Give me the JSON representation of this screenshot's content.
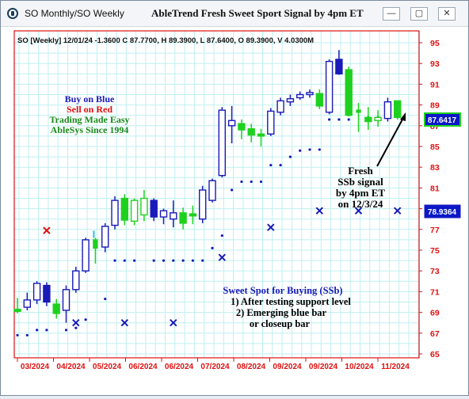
{
  "window": {
    "title": "SO Monthly/SO Weekly",
    "chart_title": "AbleTrend Fresh Sweet Sport Signal by 4pm ET",
    "minimize_glyph": "—",
    "maximize_glyph": "▢",
    "close_glyph": "✕"
  },
  "chart": {
    "info_line": "SO [Weekly] 12/01/24  -1.3600 C 87.7700, H 89.3900, L 87.6400, O 89.3900, V 4.0300M",
    "legend_lines": [
      {
        "text": "Buy on Blue",
        "color": "#1a1ab8"
      },
      {
        "text": "Sell on Red",
        "color": "#e01010"
      },
      {
        "text": "Trading Made Easy",
        "color": "#1a8a1a"
      },
      {
        "text": "AbleSys Since 1994",
        "color": "#1a8a1a"
      }
    ],
    "signal_note": [
      "Fresh",
      "SSb signal",
      "by 4pm ET",
      "on 12/3/24"
    ],
    "ssb_title": "Sweet Spot for Buying (SSb)",
    "ssb_lines": [
      "1) After testing support level",
      "2) Emerging blue bar",
      "or closeup bar"
    ],
    "price_badges": [
      {
        "value": "87.6417",
        "bg": "#0a18c8",
        "border": "#1fd11f"
      },
      {
        "value": "78.9364",
        "bg": "#0a18c8",
        "border": "#1a1ab8"
      }
    ],
    "colors": {
      "blue": "#1a1ab8",
      "green": "#1fd11f",
      "red": "#e01010",
      "grid": "#bfeff0",
      "axis": "#e01010"
    }
  },
  "chart_data": {
    "type": "candlestick",
    "y_axis": {
      "min": 65,
      "max": 95,
      "ticks": [
        65,
        67,
        69,
        71,
        73,
        75,
        77,
        79,
        81,
        83,
        85,
        87,
        89,
        91,
        93,
        95
      ]
    },
    "x_tick_labels": [
      "03/2024",
      "04/2024",
      "05/2024",
      "06/2024",
      "06/2024",
      "07/2024",
      "08/2024",
      "09/2024",
      "09/2024",
      "10/2024",
      "11/2024"
    ],
    "candles": [
      {
        "o": 69.3,
        "h": 70.4,
        "l": 68.9,
        "c": 69.1,
        "color": "green"
      },
      {
        "o": 69.5,
        "h": 70.9,
        "l": 69.2,
        "c": 70.2,
        "color": "blue"
      },
      {
        "o": 70.2,
        "h": 72.0,
        "l": 69.8,
        "c": 71.8,
        "color": "blue"
      },
      {
        "o": 70.0,
        "h": 71.9,
        "l": 69.6,
        "c": 71.6,
        "color": "blue_fill"
      },
      {
        "o": 69.8,
        "h": 70.3,
        "l": 68.4,
        "c": 68.9,
        "color": "green"
      },
      {
        "o": 69.2,
        "h": 71.6,
        "l": 68.0,
        "c": 71.2,
        "color": "blue"
      },
      {
        "o": 71.2,
        "h": 73.4,
        "l": 70.9,
        "c": 73.0,
        "color": "blue"
      },
      {
        "o": 73.0,
        "h": 76.2,
        "l": 72.8,
        "c": 76.0,
        "color": "blue"
      },
      {
        "o": 75.2,
        "h": 76.2,
        "l": 73.7,
        "c": 76.0,
        "color": "green_mini"
      },
      {
        "o": 75.3,
        "h": 77.6,
        "l": 74.8,
        "c": 77.3,
        "color": "blue"
      },
      {
        "o": 77.4,
        "h": 80.2,
        "l": 77.0,
        "c": 79.8,
        "color": "blue"
      },
      {
        "o": 80.0,
        "h": 80.4,
        "l": 77.4,
        "c": 77.9,
        "color": "green"
      },
      {
        "o": 79.8,
        "h": 80.0,
        "l": 77.4,
        "c": 77.8,
        "color": "green_open"
      },
      {
        "o": 78.4,
        "h": 80.8,
        "l": 77.8,
        "c": 80.0,
        "color": "green_open"
      },
      {
        "o": 79.8,
        "h": 80.0,
        "l": 77.8,
        "c": 78.2,
        "color": "blue_fill"
      },
      {
        "o": 78.2,
        "h": 79.0,
        "l": 77.5,
        "c": 78.8,
        "color": "blue"
      },
      {
        "o": 78.0,
        "h": 79.8,
        "l": 77.2,
        "c": 78.6,
        "color": "blue"
      },
      {
        "o": 78.6,
        "h": 79.1,
        "l": 77.0,
        "c": 77.6,
        "color": "green"
      },
      {
        "o": 78.5,
        "h": 79.3,
        "l": 77.5,
        "c": 78.3,
        "color": "green"
      },
      {
        "o": 78.0,
        "h": 81.2,
        "l": 77.6,
        "c": 80.8,
        "color": "blue"
      },
      {
        "o": 79.8,
        "h": 81.9,
        "l": 79.6,
        "c": 81.7,
        "color": "blue"
      },
      {
        "o": 82.2,
        "h": 88.8,
        "l": 82.0,
        "c": 88.5,
        "color": "blue"
      },
      {
        "o": 87.0,
        "h": 88.9,
        "l": 85.3,
        "c": 87.5,
        "color": "blue"
      },
      {
        "o": 86.6,
        "h": 87.6,
        "l": 85.7,
        "c": 87.2,
        "color": "green"
      },
      {
        "o": 86.7,
        "h": 87.2,
        "l": 85.4,
        "c": 86.1,
        "color": "green"
      },
      {
        "o": 86.2,
        "h": 86.7,
        "l": 85.0,
        "c": 86.0,
        "color": "green"
      },
      {
        "o": 86.2,
        "h": 88.7,
        "l": 86.0,
        "c": 88.4,
        "color": "blue"
      },
      {
        "o": 88.3,
        "h": 89.7,
        "l": 88.0,
        "c": 89.4,
        "color": "blue"
      },
      {
        "o": 89.3,
        "h": 90.0,
        "l": 88.9,
        "c": 89.6,
        "color": "blue"
      },
      {
        "o": 89.7,
        "h": 90.3,
        "l": 89.5,
        "c": 90.0,
        "color": "blue"
      },
      {
        "o": 90.0,
        "h": 90.5,
        "l": 89.7,
        "c": 90.2,
        "color": "blue"
      },
      {
        "o": 90.1,
        "h": 90.5,
        "l": 88.6,
        "c": 88.9,
        "color": "green"
      },
      {
        "o": 88.3,
        "h": 93.4,
        "l": 88.1,
        "c": 93.2,
        "color": "blue"
      },
      {
        "o": 93.4,
        "h": 94.3,
        "l": 91.9,
        "c": 92.0,
        "color": "blue_fill"
      },
      {
        "o": 92.4,
        "h": 92.7,
        "l": 87.9,
        "c": 88.0,
        "color": "green"
      },
      {
        "o": 88.3,
        "h": 89.2,
        "l": 86.4,
        "c": 88.5,
        "color": "green_mini"
      },
      {
        "o": 87.8,
        "h": 88.8,
        "l": 86.6,
        "c": 87.4,
        "color": "green"
      },
      {
        "o": 87.5,
        "h": 88.5,
        "l": 86.9,
        "c": 87.8,
        "color": "green_open"
      },
      {
        "o": 87.7,
        "h": 89.7,
        "l": 87.4,
        "c": 89.3,
        "color": "blue"
      },
      {
        "o": 89.4,
        "h": 89.4,
        "l": 87.6,
        "c": 87.8,
        "color": "green"
      }
    ],
    "support_dots": [
      {
        "i": 0,
        "y": 66.8
      },
      {
        "i": 1,
        "y": 66.8
      },
      {
        "i": 2,
        "y": 67.3
      },
      {
        "i": 3,
        "y": 67.3
      },
      {
        "i": 5,
        "y": 67.3
      },
      {
        "i": 6,
        "y": 67.5
      },
      {
        "i": 7,
        "y": 68.3
      },
      {
        "i": 9,
        "y": 70.3
      },
      {
        "i": 10,
        "y": 74.0
      },
      {
        "i": 11,
        "y": 74.0
      },
      {
        "i": 12,
        "y": 74.0
      },
      {
        "i": 14,
        "y": 74.0
      },
      {
        "i": 15,
        "y": 74.0
      },
      {
        "i": 16,
        "y": 74.0
      },
      {
        "i": 17,
        "y": 74.0
      },
      {
        "i": 18,
        "y": 74.0
      },
      {
        "i": 19,
        "y": 74.0
      },
      {
        "i": 20,
        "y": 75.2
      },
      {
        "i": 21,
        "y": 76.4
      },
      {
        "i": 22,
        "y": 80.8
      },
      {
        "i": 23,
        "y": 81.6
      },
      {
        "i": 24,
        "y": 81.6
      },
      {
        "i": 25,
        "y": 81.6
      },
      {
        "i": 26,
        "y": 83.2
      },
      {
        "i": 27,
        "y": 83.2
      },
      {
        "i": 28,
        "y": 84.0
      },
      {
        "i": 29,
        "y": 84.6
      },
      {
        "i": 30,
        "y": 84.7
      },
      {
        "i": 31,
        "y": 84.7
      },
      {
        "i": 32,
        "y": 87.6
      },
      {
        "i": 33,
        "y": 87.6
      },
      {
        "i": 34,
        "y": 87.6
      },
      {
        "i": 36,
        "y": 87.8
      },
      {
        "i": 37,
        "y": 87.8
      }
    ],
    "x_markers": [
      {
        "i": 3,
        "y": 76.9,
        "color": "red"
      },
      {
        "i": 6,
        "y": 68.0,
        "color": "blue"
      },
      {
        "i": 11,
        "y": 68.0,
        "color": "blue"
      },
      {
        "i": 16,
        "y": 68.0,
        "color": "blue"
      },
      {
        "i": 21,
        "y": 74.3,
        "color": "blue"
      },
      {
        "i": 26,
        "y": 77.2,
        "color": "blue"
      },
      {
        "i": 31,
        "y": 78.8,
        "color": "blue"
      },
      {
        "i": 35,
        "y": 78.8,
        "color": "blue"
      },
      {
        "i": 39,
        "y": 78.8,
        "color": "blue"
      }
    ],
    "cyan_mark": {
      "i": 8,
      "y": 76.5
    }
  }
}
